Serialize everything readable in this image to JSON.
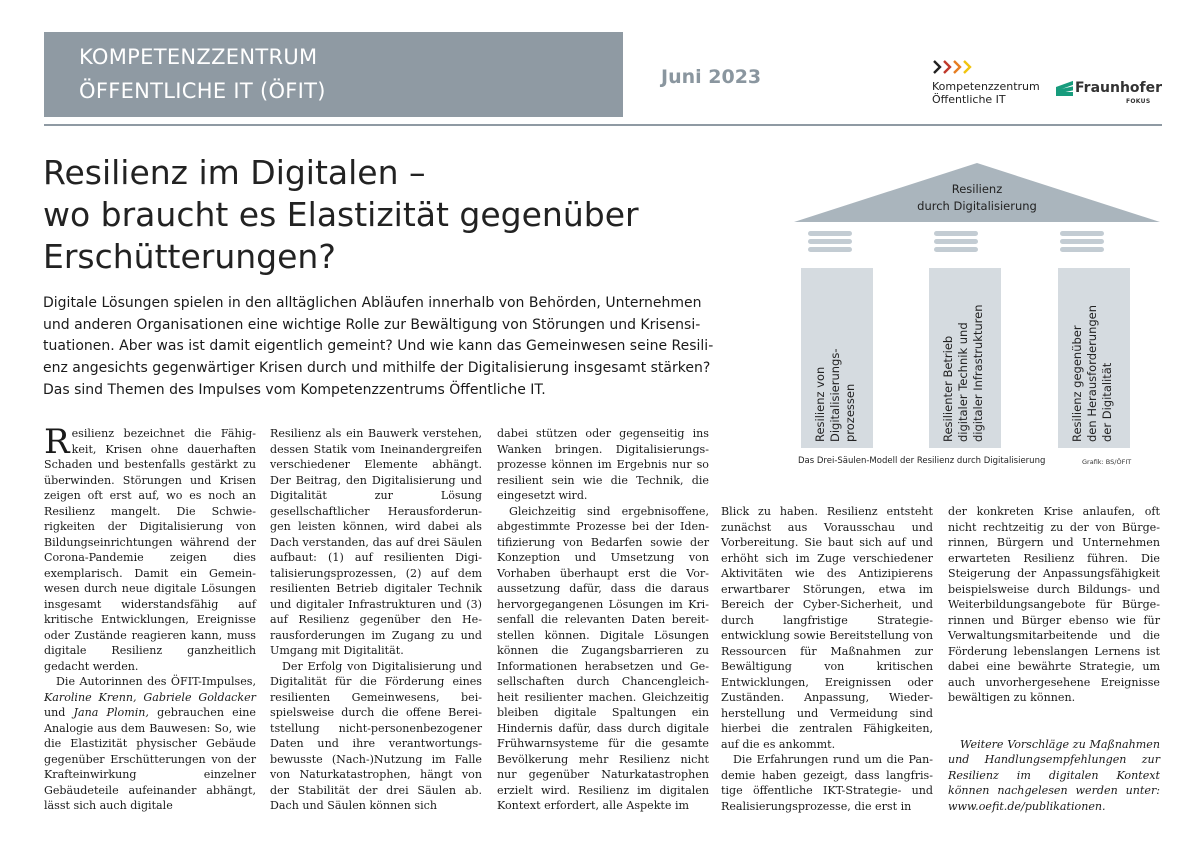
{
  "header": {
    "box_line1": "KOMPETENZZENTRUM",
    "box_line2": "ÖFFENTLICHE IT (ÖFIT)",
    "date": "Juni 2023",
    "oefit_logo_line1": "Kompetenzzentrum",
    "oefit_logo_line2": "Öffentliche IT",
    "fraunhofer_name": "Fraunhofer",
    "fraunhofer_sub": "FOKUS",
    "colors": {
      "box": "#8f9aa3",
      "date": "#8a969f",
      "chevron_dark": "#c0392b",
      "chevron_light": "#f39c12",
      "fraunhofer_green": "#179c7d"
    }
  },
  "article": {
    "title_lines": [
      "Resilienz im Digitalen –",
      "wo braucht es Elastizität gegenüber",
      "Erschütterungen?"
    ],
    "lead_lines": [
      "Digitale Lösungen spielen in den alltäglichen Abläufen innerhalb von Behörden, Unternehmen",
      "und anderen Organisationen eine wichtige Rolle zur Bewältigung von Störungen und Krisensi-",
      "tuationen. Aber was ist damit eigentlich gemeint? Und wie kann das Gemeinwesen seine Resili-",
      "enz angesichts gegenwärtiger Krisen durch und mithilfe der Digitalisierung insgesamt stärken?",
      "Das sind Themen des Impulses vom Kompetenzzentrums Öffentliche IT."
    ],
    "col1": {
      "dropcap": "R",
      "p1": "esilienz bezeichnet die Fähig­keit, Krisen ohne dauerhaften Schaden und bestenfalls gestärkt zu überwinden. Störungen und Kri­sen zeigen oft erst auf, wo es noch an Resilienz mangelt. Die Schwie­rigkeiten der Digitalisierung von Bildungseinrichtungen während der Corona-Pandemie zeigen dies exemplarisch. Damit ein Gemein­wesen durch neue digitale Lösun­gen insgesamt widerstandsfähig auf kritische Entwicklungen, Ereignis­se oder Zustände reagieren kann, muss digitale Resilienz ganzheitlich gedacht werden.",
      "p2_start": "Die Autorinnen des ÖFIT-Impul­ses, ",
      "p2_authors": "Karoline Krenn, Gabriele Gold­acker",
      "p2_und": " und ",
      "p2_author3": "Jana Plomin,",
      "p2_rest": " gebrauchen eine Analogie aus dem Bauwesen: So, wie die Elastizität physischer Gebäude gegenüber Erschütterun­gen von der Krafteinwirkung ein­zelner Gebäudeteile aufeinander abhängt, lässt sich auch digitale"
    },
    "col2": {
      "p1": "Resilienz als ein Bauwerk verste­hen, dessen Statik vom Ineinan­dergreifen verschiedener Elemente abhängt. Der Beitrag, den Digitali­sierung und Digitalität zur Lösung gesellschaftlicher Herausforderun­gen leisten können, wird dabei als Dach verstanden, das auf drei Säu­len aufbaut: (1) auf resilienten Digi­talisierungsprozessen, (2) auf dem resilienten Betrieb digitaler Technik und digitaler Infrastrukturen und (3) auf Resilienz gegenüber den He­rausforderungen im Zugang zu und Umgang mit Digitalität.",
      "p2": "Der Erfolg von Digitalisierung und Digitalität für die Förderung eines resilienten Gemeinwesens, bei­spielsweise durch die offene Berei­tstellung nicht-personenbezogener Daten und ihre verantwortungs­bewusste (Nach-)Nutzung im Fal­le von Naturkatastrophen, hängt von der Stabilität der drei Säulen ab. Dach und Säulen können sich"
    },
    "col3": {
      "p1": "dabei stützen oder gegenseitig ins Wanken bringen. Digitalisierungs­prozesse können im Ergebnis nur so resilient sein wie die Technik, die eingesetzt wird.",
      "p2": "Gleichzeitig sind ergebnisoffene, abgestimmte Prozesse bei der Iden­tifizierung von Bedarfen sowie der Konzeption und Umsetzung von Vorhaben überhaupt erst die Vor­aussetzung dafür, dass die daraus hervorgegangenen Lösungen im Kri­senfall die relevanten Daten bereit­stellen können. Digitale Lösungen können die Zugangsbarrieren zu Informationen herabsetzen und Ge­sellschaften durch Chancengleich­heit resilienter machen. Gleichzei­tig bleiben digitale Spaltungen ein Hindernis dafür, dass durch digitale Frühwarnsysteme für die gesamte Bevölkerung mehr Resilienz nicht nur gegenüber Naturkatastrophen erzielt wird. Resilienz im digitalen Kontext erfordert, alle Aspekte im"
    },
    "col4": {
      "p1": "Blick zu haben. Resilienz entsteht zunächst aus Voraussc­hau und Vorbereitung. Sie baut sich auf und erhöht sich im Zuge verschie­dener Aktivitäten wie des Antizipie­rens erwartbarer Störungen, etwa im Bereich der Cyber-Sicherheit, und durch langfristige Strategie­entwicklung sowie Bereitstellung von Ressourcen für Maßnahmen zur Bewältigung von kritischen Entwicklungen, Ereignissen oder Zuständen. Anpassung, Wieder­herstellung und Vermeidung sind hierbei die zentralen Fähigkeiten, auf die es ankommt.",
      "p2": "Die Erfahrungen rund um die Pan­demie haben gezeigt, dass langfris­tige öffentliche IKT-Strategie- und Realisierungsprozesse, die erst in"
    },
    "col5": {
      "p1": "der konkreten Krise anlaufen, oft nicht rechtzeitig zu der von Bürge­rinnen, Bürgern und Unternehmen erwarteten Resilienz führen. Die Steigerung der Anpassungsfähigkeit beispielsweise durch Bildungs- und Weiterbildungsangebote für Bürge­rinnen und Bürger ebenso wie für Verwaltungsmitarbeitende und die Förderung lebenslangen Lernens ist dabei eine bewährte Strategie, um auch unvorhergesehene Ereignisse bewältigen zu können.",
      "closing": "Weitere Vorschläge zu Maßnah­men und Handlungsempfehlungen zur Resilienz im digitalen Kontext können nachgelesen werden unter: www.oefit.de/publikationen."
    }
  },
  "diagram": {
    "roof_line1": "Resilienz",
    "roof_line2": "durch Digitalisierung",
    "pillar1": [
      "Resilienz von",
      "Digitalisierungs-",
      "prozessen"
    ],
    "pillar2": [
      "Resilienter Betrieb",
      "digitaler Technik und",
      "digitaler Infrastrukturen"
    ],
    "pillar3": [
      "Resilienz gegenüber",
      "den Herausforderungen",
      "der Digitalität"
    ],
    "caption": "Das Drei-Säulen-Modell der Resilienz durch Digitalisierung",
    "credit": "Grafik: BS/ÖFIT",
    "colors": {
      "roof": "#aab5bd",
      "pillar": "#d5dbe0",
      "capital": "#c3ccd3"
    }
  }
}
